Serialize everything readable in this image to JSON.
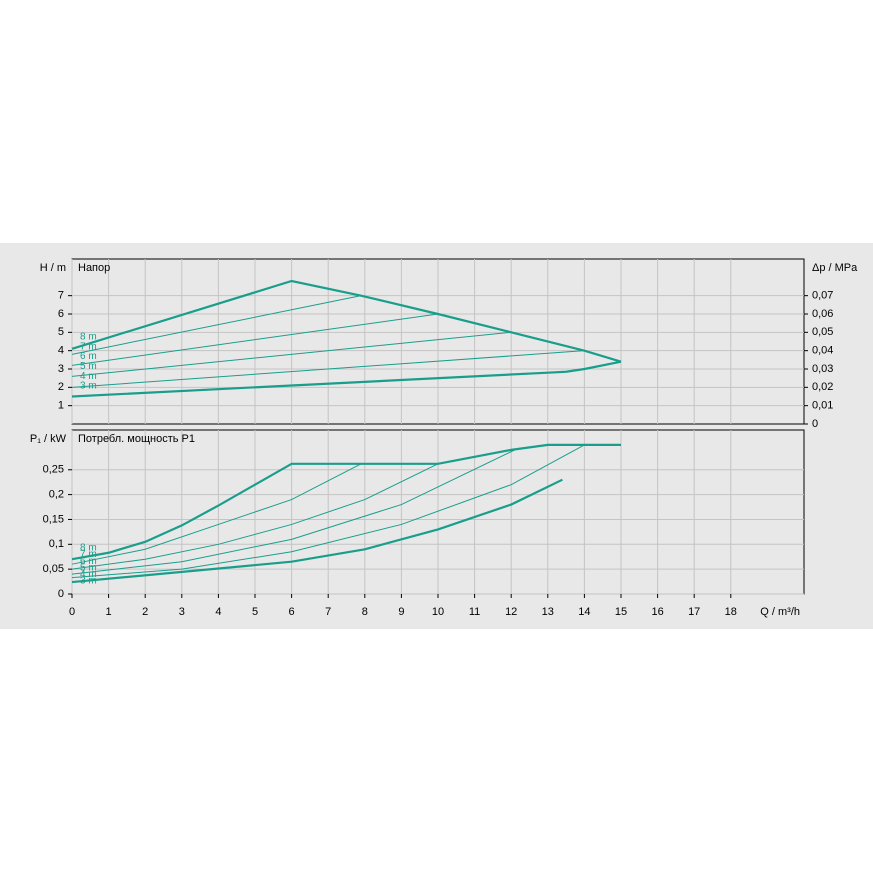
{
  "chart_data": [
    {
      "type": "line",
      "title": "Напор",
      "ylabel": "H / m",
      "y2label": "Δp / MPa",
      "xlim": [
        0,
        20
      ],
      "ylim": [
        0,
        9
      ],
      "yticks": [
        1,
        2,
        3,
        4,
        5,
        6,
        7
      ],
      "y2lim": [
        0,
        0.09
      ],
      "y2ticks": [
        0,
        {
          "value": 0.01,
          "label": "0,01"
        },
        {
          "value": 0.02,
          "label": "0,02"
        },
        {
          "value": 0.03,
          "label": "0,03"
        },
        {
          "value": 0.04,
          "label": "0,04"
        },
        {
          "value": 0.05,
          "label": "0,05"
        },
        {
          "value": 0.06,
          "label": "0,06"
        },
        {
          "value": 0.07,
          "label": "0,07"
        }
      ],
      "grid": true,
      "series": [
        {
          "name": "8 m",
          "color": "#1a9e8c",
          "bold": true,
          "x": [
            0,
            6,
            7.9,
            10,
            12,
            14,
            15
          ],
          "values": [
            4.1,
            7.8,
            7.0,
            6.0,
            5.0,
            4.0,
            3.4
          ]
        },
        {
          "name": "7 m",
          "color": "#1a9e8c",
          "bold": false,
          "x": [
            0,
            7.9
          ],
          "values": [
            3.8,
            7.0
          ]
        },
        {
          "name": "6 m",
          "color": "#1a9e8c",
          "bold": false,
          "x": [
            0,
            10
          ],
          "values": [
            3.2,
            6.0
          ]
        },
        {
          "name": "5 m",
          "color": "#1a9e8c",
          "bold": false,
          "x": [
            0,
            12
          ],
          "values": [
            2.6,
            5.0
          ]
        },
        {
          "name": "4 m",
          "color": "#1a9e8c",
          "bold": false,
          "x": [
            0,
            14
          ],
          "values": [
            2.0,
            4.0
          ]
        },
        {
          "name": "3 m",
          "color": "#1a9e8c",
          "bold": true,
          "x": [
            0,
            6,
            13,
            13.5,
            14,
            15
          ],
          "values": [
            1.5,
            2.1,
            2.8,
            2.85,
            3.0,
            3.4
          ]
        }
      ]
    },
    {
      "type": "line",
      "title": "Потребл. мощность P1",
      "ylabel": "P₁ / kW",
      "xlabel": "Q / m³/h",
      "xlim": [
        0,
        20
      ],
      "xticks": [
        0,
        1,
        2,
        3,
        4,
        5,
        6,
        7,
        8,
        9,
        10,
        11,
        12,
        13,
        14,
        15,
        16,
        17,
        18
      ],
      "ylim": [
        0,
        0.33
      ],
      "yticks": [
        0,
        {
          "value": 0.05,
          "label": "0,05"
        },
        {
          "value": 0.1,
          "label": "0,1"
        },
        {
          "value": 0.15,
          "label": "0,15"
        },
        {
          "value": 0.2,
          "label": "0,2"
        },
        {
          "value": 0.25,
          "label": "0,25"
        }
      ],
      "grid": true,
      "series": [
        {
          "name": "8 m",
          "color": "#1a9e8c",
          "bold": true,
          "x": [
            0,
            1,
            2,
            3,
            4,
            5,
            6,
            8,
            10,
            12,
            13,
            15
          ],
          "values": [
            0.07,
            0.083,
            0.105,
            0.138,
            0.178,
            0.22,
            0.262,
            0.262,
            0.262,
            0.29,
            0.3,
            0.3
          ]
        },
        {
          "name": "7 m",
          "color": "#1a9e8c",
          "bold": false,
          "x": [
            0,
            2,
            4,
            6,
            7.9
          ],
          "values": [
            0.06,
            0.09,
            0.14,
            0.19,
            0.262
          ]
        },
        {
          "name": "6 m",
          "color": "#1a9e8c",
          "bold": false,
          "x": [
            0,
            2,
            4,
            6,
            8,
            10
          ],
          "values": [
            0.05,
            0.07,
            0.1,
            0.14,
            0.19,
            0.262
          ]
        },
        {
          "name": "5 m",
          "color": "#1a9e8c",
          "bold": false,
          "x": [
            0,
            3,
            6,
            9,
            12.1
          ],
          "values": [
            0.04,
            0.065,
            0.11,
            0.18,
            0.29
          ]
        },
        {
          "name": "4 m",
          "color": "#1a9e8c",
          "bold": false,
          "x": [
            0,
            3,
            6,
            9,
            12,
            14
          ],
          "values": [
            0.033,
            0.05,
            0.085,
            0.14,
            0.22,
            0.3
          ]
        },
        {
          "name": "3 m",
          "color": "#1a9e8c",
          "bold": true,
          "x": [
            0,
            6,
            8,
            10,
            12,
            13.4
          ],
          "values": [
            0.024,
            0.065,
            0.09,
            0.13,
            0.18,
            0.23
          ]
        }
      ]
    }
  ]
}
